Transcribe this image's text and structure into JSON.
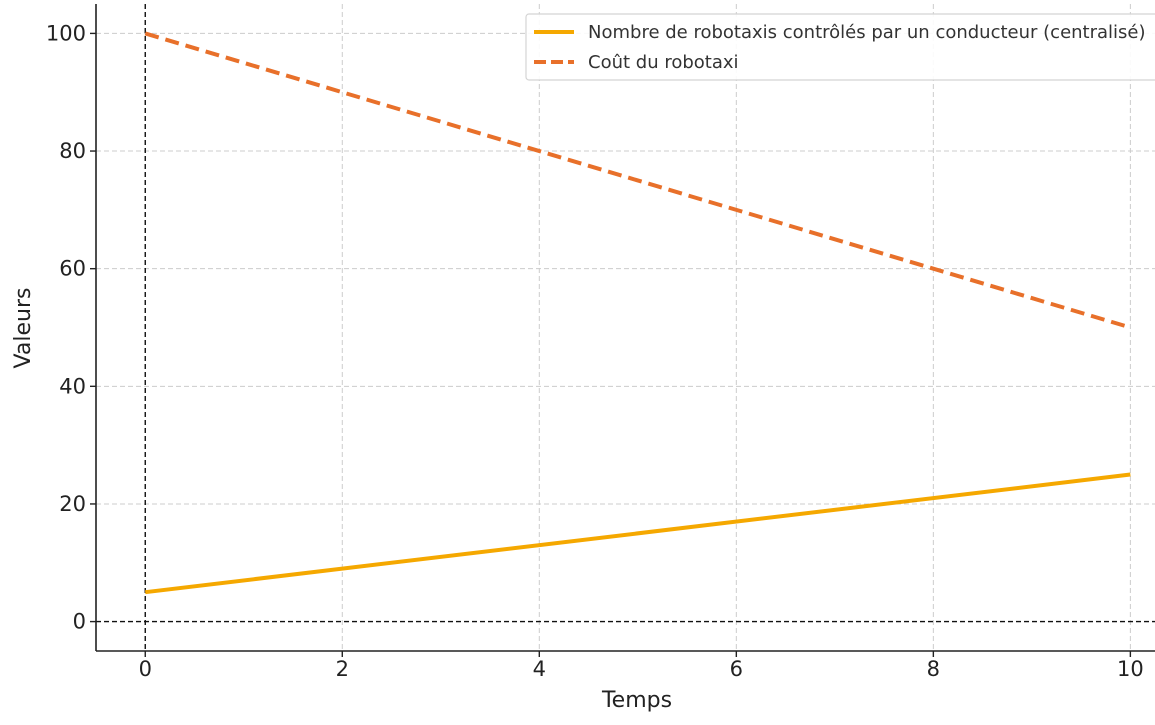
{
  "chart_data": {
    "type": "line",
    "title": "",
    "xlabel": "Temps",
    "ylabel": "Valeurs",
    "xlim": [
      -0.5,
      10.25
    ],
    "ylim": [
      -5,
      105
    ],
    "xticks": [
      0,
      2,
      4,
      6,
      8,
      10
    ],
    "yticks": [
      0,
      20,
      40,
      60,
      80,
      100
    ],
    "grid": true,
    "legend_position": "top-right",
    "reference_lines": {
      "x": 0,
      "y": 0
    },
    "series": [
      {
        "name": "Nombre de robotaxis contrôlés par un conducteur (centralisé)",
        "color": "#F5A800",
        "style": "solid",
        "x": [
          0,
          10
        ],
        "y": [
          5,
          25
        ]
      },
      {
        "name": "Coût du robotaxi",
        "color": "#E8702A",
        "style": "dashed",
        "x": [
          0,
          10
        ],
        "y": [
          100,
          50
        ]
      }
    ]
  }
}
